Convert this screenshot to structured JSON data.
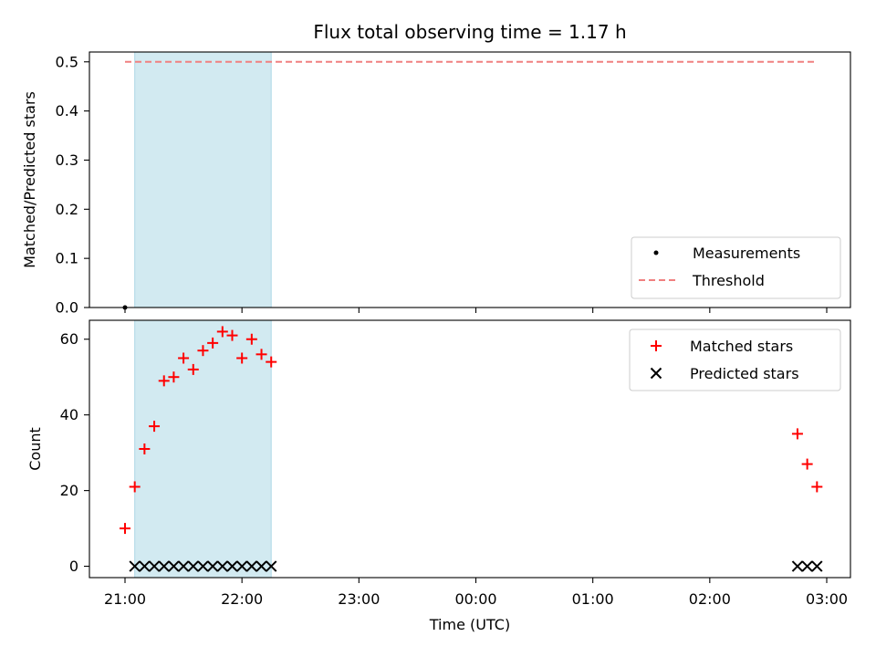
{
  "title": "Flux total observing time = 1.17 h",
  "xlabel": "Time (UTC)",
  "colors": {
    "measurements": "#000000",
    "threshold": "#f08080",
    "matched": "#ff0000",
    "predicted": "#000000",
    "span": "#add8e6"
  },
  "chart_data": [
    {
      "type": "scatter",
      "panel": "top",
      "ylabel": "Matched/Predicted stars",
      "ylim": [
        0,
        0.52
      ],
      "yticks": [
        "0.0",
        "0.1",
        "0.2",
        "0.3",
        "0.4",
        "0.5"
      ],
      "ytick_values": [
        0,
        0.1,
        0.2,
        0.3,
        0.4,
        0.5
      ],
      "legend_position": "lower-right",
      "shaded_span": {
        "x": [
          "21:05",
          "22:15"
        ]
      },
      "series": [
        {
          "name": "Measurements",
          "kind": "points",
          "x": [
            "21:00"
          ],
          "y": [
            0
          ]
        },
        {
          "name": "Threshold",
          "kind": "dashed-line",
          "x": [
            "21:00",
            "02:55"
          ],
          "y": [
            0.5,
            0.5
          ]
        }
      ],
      "grid": false
    },
    {
      "type": "scatter",
      "panel": "bottom",
      "ylabel": "Count",
      "ylim": [
        -3,
        65
      ],
      "yticks": [
        "0",
        "20",
        "40",
        "60"
      ],
      "ytick_values": [
        0,
        20,
        40,
        60
      ],
      "xticks": [
        "21:00",
        "22:00",
        "23:00",
        "00:00",
        "01:00",
        "02:00",
        "03:00"
      ],
      "legend_position": "upper-right",
      "shaded_span": {
        "x": [
          "21:05",
          "22:15"
        ]
      },
      "series": [
        {
          "name": "Matched stars",
          "marker": "plus",
          "x": [
            "21:00",
            "21:05",
            "21:10",
            "21:15",
            "21:20",
            "21:25",
            "21:30",
            "21:35",
            "21:40",
            "21:45",
            "21:50",
            "21:55",
            "22:00",
            "22:05",
            "22:10",
            "22:15",
            "02:45",
            "02:50",
            "02:55"
          ],
          "y": [
            10,
            21,
            31,
            37,
            49,
            50,
            55,
            52,
            57,
            59,
            62,
            61,
            55,
            60,
            56,
            54,
            35,
            27,
            21
          ]
        },
        {
          "name": "Predicted stars",
          "marker": "x",
          "x": [
            "21:05",
            "21:10",
            "21:15",
            "21:20",
            "21:25",
            "21:30",
            "21:35",
            "21:40",
            "21:45",
            "21:50",
            "21:55",
            "22:00",
            "22:05",
            "22:10",
            "22:15",
            "02:45",
            "02:50",
            "02:55"
          ],
          "y": [
            0,
            0,
            0,
            0,
            0,
            0,
            0,
            0,
            0,
            0,
            0,
            0,
            0,
            0,
            0,
            0,
            0,
            0
          ]
        }
      ],
      "grid": false
    }
  ]
}
